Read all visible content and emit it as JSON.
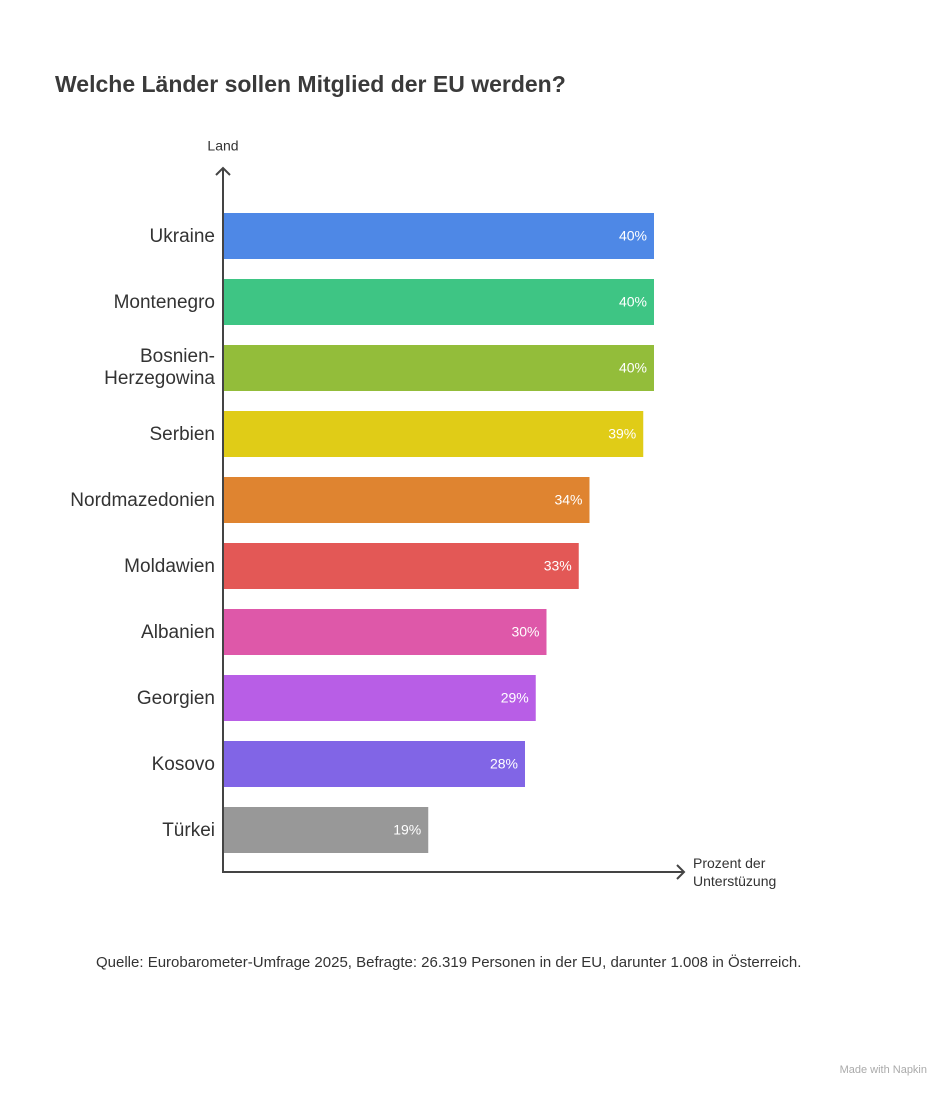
{
  "chart_data": {
    "type": "bar",
    "orientation": "horizontal",
    "title": "Welche Länder sollen Mitglied der EU werden?",
    "y_label": "Land",
    "x_label": "Prozent der Unterstüzung",
    "categories": [
      "Ukraine",
      "Montenegro",
      "Bosnien-Herzegowina",
      "Serbien",
      "Nordmazedonien",
      "Moldawien",
      "Albanien",
      "Georgien",
      "Kosovo",
      "Türkei"
    ],
    "values": [
      40,
      40,
      40,
      39,
      34,
      33,
      30,
      29,
      28,
      19
    ],
    "value_labels": [
      "40%",
      "40%",
      "40%",
      "39%",
      "34%",
      "33%",
      "30%",
      "29%",
      "28%",
      "19%"
    ],
    "colors": [
      "#4e88e6",
      "#3ec584",
      "#93bd3a",
      "#e0cc17",
      "#df8430",
      "#e35856",
      "#de58a9",
      "#b85ee6",
      "#8165e6",
      "#989898"
    ],
    "source": "Quelle: Eurobarometer-Umfrage 2025, Befragte: 26.319 Personen in der EU, darunter 1.008 in Österreich.",
    "watermark": "Made with Napkin"
  }
}
